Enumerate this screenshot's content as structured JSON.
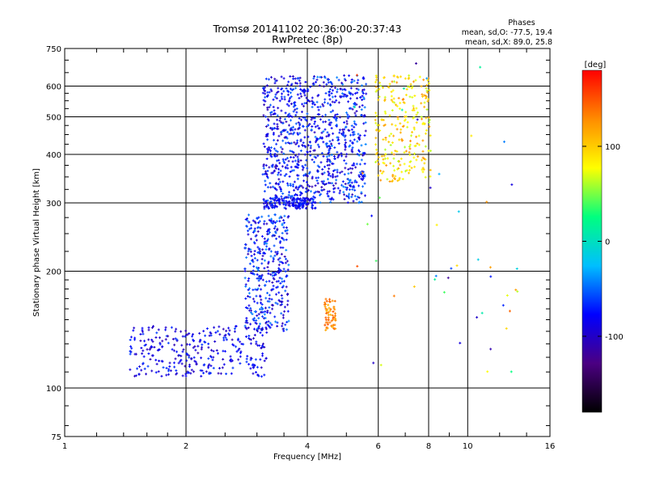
{
  "chart_data": {
    "type": "scatter",
    "title": "Tromsø 20141102 20:36:00-20:37:43",
    "subtitle": "RwPretec (8p)",
    "xlabel": "Frequency [MHz]",
    "ylabel": "Stationary phase Virtual Height [km]",
    "x_scale": "log",
    "y_scale": "log",
    "xlim": [
      1,
      16
    ],
    "ylim": [
      75,
      750
    ],
    "x_ticks": [
      1,
      2,
      4,
      6,
      8,
      10,
      16
    ],
    "y_ticks": [
      75,
      100,
      200,
      300,
      400,
      500,
      600,
      750
    ],
    "x_gridlines": [
      2,
      4,
      6,
      8,
      10
    ],
    "y_gridlines": [
      100,
      200,
      300,
      400,
      500,
      600
    ],
    "grid": true,
    "stats": {
      "heading": "Phases",
      "line_o": "mean, sd,O: -77.5, 19.4",
      "line_x": "mean, sd,X:  89.0, 25.8"
    },
    "colorbar": {
      "unit_label": "[deg]",
      "range": [
        -180,
        180
      ],
      "ticks": [
        100,
        0,
        -100
      ],
      "colors": [
        "#000000",
        "#4b0082",
        "#0000ff",
        "#00bfff",
        "#00ff7f",
        "#ffff00",
        "#ff8c00",
        "#ff0000"
      ]
    },
    "point_groups": [
      {
        "name": "o-trace-low",
        "f_range": [
          1.45,
          3.2
        ],
        "h_range": [
          107,
          145
        ],
        "phase_range": [
          -110,
          -60
        ],
        "count": 320
      },
      {
        "name": "o-trace-rise",
        "f_range": [
          2.8,
          3.6
        ],
        "h_range": [
          140,
          280
        ],
        "phase_range": [
          -110,
          -40
        ],
        "count": 380
      },
      {
        "name": "o-trace-mid",
        "f_range": [
          3.1,
          4.0
        ],
        "h_range": [
          300,
          640
        ],
        "phase_range": [
          -110,
          -50
        ],
        "count": 420
      },
      {
        "name": "o-trace-floor",
        "f_range": [
          3.1,
          4.2
        ],
        "h_range": [
          290,
          310
        ],
        "phase_range": [
          -100,
          -60
        ],
        "count": 160
      },
      {
        "name": "o-trace-upper",
        "f_range": [
          4.0,
          5.6
        ],
        "h_range": [
          300,
          640
        ],
        "phase_range": [
          -110,
          -40
        ],
        "count": 520
      },
      {
        "name": "x-trace",
        "f_range": [
          5.9,
          8.1
        ],
        "h_range": [
          340,
          640
        ],
        "phase_range": [
          60,
          130
        ],
        "count": 260
      },
      {
        "name": "x-patch-low",
        "f_range": [
          4.4,
          4.7
        ],
        "h_range": [
          140,
          170
        ],
        "phase_range": [
          110,
          150
        ],
        "count": 60
      },
      {
        "name": "scattered",
        "f_range": [
          5.0,
          14.0
        ],
        "h_range": [
          100,
          700
        ],
        "phase_range": [
          -120,
          160
        ],
        "count": 50
      }
    ]
  }
}
